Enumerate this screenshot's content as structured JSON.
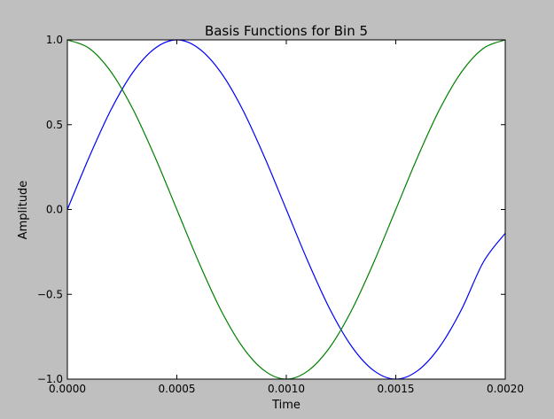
{
  "chart_data": {
    "type": "line",
    "title": "Basis Functions for Bin 5",
    "xlabel": "Time",
    "ylabel": "Amplitude",
    "xlim": [
      0,
      0.002
    ],
    "ylim": [
      -1.0,
      1.0
    ],
    "grid": false,
    "legend": "none",
    "x_ticks": [
      {
        "value": 0.0,
        "label": "0.0000"
      },
      {
        "value": 0.0005,
        "label": "0.0005"
      },
      {
        "value": 0.001,
        "label": "0.0010"
      },
      {
        "value": 0.0015,
        "label": "0.0015"
      },
      {
        "value": 0.002,
        "label": "0.0020"
      }
    ],
    "y_ticks": [
      {
        "value": 1.0,
        "label": "1.0"
      },
      {
        "value": 0.5,
        "label": "0.5"
      },
      {
        "value": 0.0,
        "label": "0.0"
      },
      {
        "value": -0.5,
        "label": "−0.5"
      },
      {
        "value": -1.0,
        "label": "−1.0"
      }
    ],
    "series": [
      {
        "color": "#0000ff",
        "x": [
          0.0,
          0.0001,
          0.0002,
          0.0003,
          0.0004,
          0.0005,
          0.0006,
          0.0007,
          0.0008,
          0.0009,
          0.001,
          0.0011,
          0.0012,
          0.0013,
          0.0014,
          0.0015,
          0.0016,
          0.0017,
          0.0018,
          0.0019,
          0.002
        ],
        "values": [
          0.0,
          0.31,
          0.59,
          0.81,
          0.95,
          1.0,
          0.95,
          0.81,
          0.59,
          0.31,
          0.0,
          -0.31,
          -0.59,
          -0.81,
          -0.95,
          -1.0,
          -0.95,
          -0.81,
          -0.59,
          -0.31,
          -0.14
        ]
      },
      {
        "color": "#008000",
        "x": [
          0.0,
          0.0001,
          0.0002,
          0.0003,
          0.0004,
          0.0005,
          0.0006,
          0.0007,
          0.0008,
          0.0009,
          0.001,
          0.0011,
          0.0012,
          0.0013,
          0.0014,
          0.0015,
          0.0016,
          0.0017,
          0.0018,
          0.0019,
          0.002
        ],
        "values": [
          1.0,
          0.95,
          0.81,
          0.59,
          0.31,
          0.0,
          -0.31,
          -0.59,
          -0.81,
          -0.95,
          -1.0,
          -0.95,
          -0.81,
          -0.59,
          -0.31,
          0.0,
          0.31,
          0.59,
          0.81,
          0.95,
          1.0
        ]
      }
    ]
  }
}
